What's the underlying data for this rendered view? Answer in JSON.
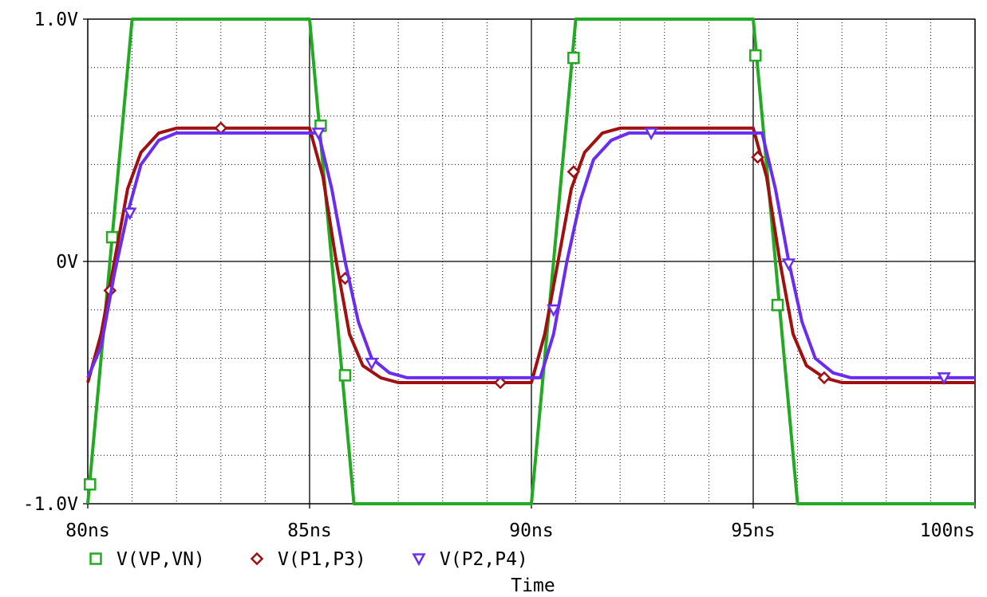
{
  "chart_data": {
    "type": "line",
    "xlabel": "Time",
    "ylabel": "",
    "xlim": [
      80,
      100
    ],
    "ylim": [
      -1.0,
      1.0
    ],
    "x_ticks": [
      {
        "value": 80,
        "label": "80ns"
      },
      {
        "value": 85,
        "label": "85ns"
      },
      {
        "value": 90,
        "label": "90ns"
      },
      {
        "value": 95,
        "label": "95ns"
      },
      {
        "value": 100,
        "label": "100ns"
      }
    ],
    "y_ticks": [
      {
        "value": 1.0,
        "label": "1.0V"
      },
      {
        "value": 0,
        "label": "0V"
      },
      {
        "value": -1.0,
        "label": "-1.0V"
      }
    ],
    "grid": true,
    "series": [
      {
        "name": "V(VP,VN)",
        "color": "#22aa22",
        "marker": "square",
        "points": [
          [
            80.0,
            -1.0
          ],
          [
            81.0,
            1.0
          ],
          [
            85.0,
            1.0
          ],
          [
            86.0,
            -1.0
          ],
          [
            90.0,
            -1.0
          ],
          [
            91.0,
            1.0
          ],
          [
            95.0,
            1.0
          ],
          [
            96.0,
            -1.0
          ],
          [
            100.0,
            -1.0
          ]
        ],
        "markers": [
          [
            80.05,
            -0.92
          ],
          [
            80.55,
            0.1
          ],
          [
            85.25,
            0.56
          ],
          [
            85.8,
            -0.47
          ],
          [
            90.95,
            0.84
          ],
          [
            95.05,
            0.85
          ],
          [
            95.55,
            -0.18
          ]
        ]
      },
      {
        "name": "V(P1,P3)",
        "color": "#a01010",
        "marker": "diamond",
        "points": [
          [
            80.0,
            -0.5
          ],
          [
            80.3,
            -0.3
          ],
          [
            80.6,
            0.0
          ],
          [
            80.9,
            0.3
          ],
          [
            81.2,
            0.45
          ],
          [
            81.6,
            0.53
          ],
          [
            82.0,
            0.55
          ],
          [
            85.0,
            0.55
          ],
          [
            85.3,
            0.35
          ],
          [
            85.6,
            0.0
          ],
          [
            85.9,
            -0.3
          ],
          [
            86.2,
            -0.43
          ],
          [
            86.6,
            -0.48
          ],
          [
            87.0,
            -0.5
          ],
          [
            90.0,
            -0.5
          ],
          [
            90.3,
            -0.3
          ],
          [
            90.6,
            0.0
          ],
          [
            90.9,
            0.3
          ],
          [
            91.2,
            0.45
          ],
          [
            91.6,
            0.53
          ],
          [
            92.0,
            0.55
          ],
          [
            95.0,
            0.55
          ],
          [
            95.3,
            0.35
          ],
          [
            95.6,
            0.0
          ],
          [
            95.9,
            -0.3
          ],
          [
            96.2,
            -0.43
          ],
          [
            96.6,
            -0.48
          ],
          [
            97.0,
            -0.5
          ],
          [
            100.0,
            -0.5
          ]
        ],
        "markers": [
          [
            80.5,
            -0.12
          ],
          [
            83.0,
            0.55
          ],
          [
            85.8,
            -0.07
          ],
          [
            89.3,
            -0.5
          ],
          [
            90.95,
            0.37
          ],
          [
            95.1,
            0.43
          ],
          [
            96.6,
            -0.48
          ]
        ]
      },
      {
        "name": "V(P2,P4)",
        "color": "#6a2df0",
        "marker": "triangle-down",
        "points": [
          [
            80.0,
            -0.48
          ],
          [
            80.3,
            -0.35
          ],
          [
            80.6,
            -0.05
          ],
          [
            80.9,
            0.2
          ],
          [
            81.2,
            0.4
          ],
          [
            81.6,
            0.5
          ],
          [
            82.0,
            0.53
          ],
          [
            85.2,
            0.53
          ],
          [
            85.5,
            0.3
          ],
          [
            85.8,
            0.0
          ],
          [
            86.1,
            -0.25
          ],
          [
            86.4,
            -0.4
          ],
          [
            86.8,
            -0.46
          ],
          [
            87.2,
            -0.48
          ],
          [
            90.2,
            -0.48
          ],
          [
            90.5,
            -0.3
          ],
          [
            90.8,
            0.0
          ],
          [
            91.1,
            0.25
          ],
          [
            91.4,
            0.42
          ],
          [
            91.8,
            0.5
          ],
          [
            92.2,
            0.53
          ],
          [
            95.2,
            0.53
          ],
          [
            95.5,
            0.3
          ],
          [
            95.8,
            0.0
          ],
          [
            96.1,
            -0.25
          ],
          [
            96.4,
            -0.4
          ],
          [
            96.8,
            -0.46
          ],
          [
            97.2,
            -0.48
          ],
          [
            100.0,
            -0.48
          ]
        ],
        "markers": [
          [
            80.95,
            0.2
          ],
          [
            85.2,
            0.53
          ],
          [
            86.4,
            -0.42
          ],
          [
            90.5,
            -0.2
          ],
          [
            92.7,
            0.53
          ],
          [
            95.8,
            -0.01
          ],
          [
            99.3,
            -0.48
          ]
        ]
      }
    ]
  }
}
